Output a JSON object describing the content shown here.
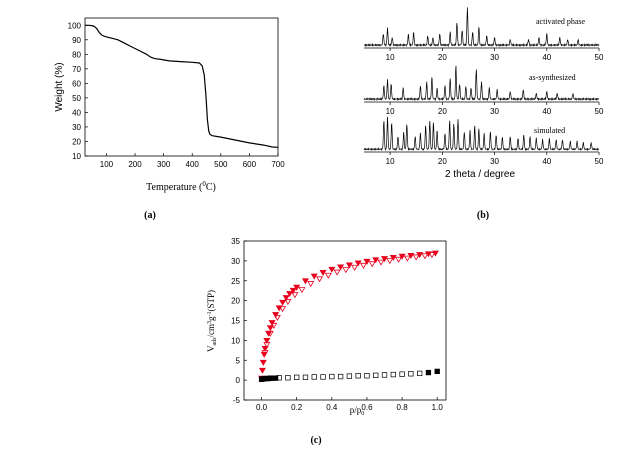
{
  "chart_data": [
    {
      "panel": "(a)",
      "type": "line",
      "xlabel_prefix": "Temperature (",
      "xlabel_sup": "0",
      "xlabel_suffix": "C)",
      "ylabel": "Weight  (%)",
      "xlim": [
        25,
        700
      ],
      "ylim": [
        10,
        105
      ],
      "xticks": [
        100,
        200,
        300,
        400,
        500,
        600,
        700
      ],
      "yticks": [
        10,
        20,
        30,
        40,
        50,
        60,
        70,
        80,
        90,
        100
      ],
      "grid": false,
      "series": [
        {
          "x": [
            25,
            40,
            55,
            65,
            75,
            85,
            100,
            120,
            140,
            160,
            180,
            200,
            220,
            240,
            255,
            270,
            290,
            320,
            360,
            400,
            425,
            435,
            442,
            448,
            453,
            458,
            462,
            470,
            500,
            550,
            600,
            650,
            680,
            700
          ],
          "y": [
            100,
            100,
            99.5,
            98,
            95,
            93,
            92,
            91,
            90,
            88,
            86,
            84,
            82,
            80,
            78,
            77,
            76.5,
            75.5,
            75,
            74.5,
            74,
            72,
            66,
            52,
            35,
            27,
            25,
            24,
            23,
            21,
            19,
            17.5,
            16.2,
            16
          ]
        }
      ]
    },
    {
      "panel": "(b)",
      "type": "line",
      "xlabel": "2 theta / degree",
      "xlim": [
        5,
        50
      ],
      "xticks": [
        10,
        20,
        30,
        40,
        50
      ],
      "grid": false,
      "patterns": [
        {
          "label": "activated phase",
          "peaks": [
            [
              8.7,
              0.3
            ],
            [
              9.5,
              0.45
            ],
            [
              10.4,
              0.2
            ],
            [
              13.5,
              0.3
            ],
            [
              14.5,
              0.35
            ],
            [
              17.2,
              0.25
            ],
            [
              18.2,
              0.2
            ],
            [
              19.5,
              0.3
            ],
            [
              21.5,
              0.35
            ],
            [
              22.8,
              0.6
            ],
            [
              23.8,
              0.4
            ],
            [
              24.8,
              1.0
            ],
            [
              25.8,
              0.35
            ],
            [
              27.0,
              0.5
            ],
            [
              28.5,
              0.25
            ],
            [
              30.0,
              0.2
            ],
            [
              33.0,
              0.15
            ],
            [
              36.5,
              0.15
            ],
            [
              38.5,
              0.2
            ],
            [
              40.0,
              0.3
            ],
            [
              42.5,
              0.2
            ],
            [
              44.0,
              0.15
            ],
            [
              46.0,
              0.15
            ]
          ]
        },
        {
          "label": "as-synthesized",
          "peaks": [
            [
              8.8,
              0.35
            ],
            [
              9.5,
              0.5
            ],
            [
              10.2,
              0.4
            ],
            [
              12.5,
              0.3
            ],
            [
              15.8,
              0.35
            ],
            [
              17.0,
              0.45
            ],
            [
              18.0,
              0.6
            ],
            [
              19.0,
              0.3
            ],
            [
              20.5,
              0.35
            ],
            [
              21.5,
              0.55
            ],
            [
              22.6,
              0.9
            ],
            [
              23.3,
              0.4
            ],
            [
              24.5,
              0.35
            ],
            [
              25.5,
              0.3
            ],
            [
              26.5,
              0.8
            ],
            [
              27.5,
              0.45
            ],
            [
              29.0,
              0.3
            ],
            [
              30.5,
              0.25
            ],
            [
              33.0,
              0.2
            ],
            [
              35.5,
              0.25
            ],
            [
              38.0,
              0.15
            ],
            [
              40.0,
              0.2
            ],
            [
              42.0,
              0.15
            ],
            [
              45.0,
              0.15
            ]
          ]
        },
        {
          "label": "simulated",
          "peaks": [
            [
              8.8,
              0.9
            ],
            [
              9.5,
              1.0
            ],
            [
              10.3,
              0.85
            ],
            [
              11.5,
              0.4
            ],
            [
              12.6,
              0.55
            ],
            [
              13.2,
              0.8
            ],
            [
              14.8,
              0.4
            ],
            [
              15.8,
              0.5
            ],
            [
              16.8,
              0.75
            ],
            [
              17.6,
              0.9
            ],
            [
              18.3,
              0.85
            ],
            [
              19.0,
              0.6
            ],
            [
              20.5,
              0.5
            ],
            [
              21.4,
              0.9
            ],
            [
              22.2,
              0.8
            ],
            [
              23.0,
              0.95
            ],
            [
              24.2,
              0.55
            ],
            [
              25.3,
              0.6
            ],
            [
              26.2,
              0.75
            ],
            [
              27.0,
              0.65
            ],
            [
              28.0,
              0.5
            ],
            [
              29.2,
              0.55
            ],
            [
              30.3,
              0.45
            ],
            [
              31.5,
              0.4
            ],
            [
              33.0,
              0.4
            ],
            [
              34.5,
              0.35
            ],
            [
              35.6,
              0.45
            ],
            [
              36.8,
              0.4
            ],
            [
              38.0,
              0.35
            ],
            [
              39.2,
              0.3
            ],
            [
              40.5,
              0.35
            ],
            [
              41.8,
              0.3
            ],
            [
              43.0,
              0.3
            ],
            [
              44.5,
              0.25
            ],
            [
              45.8,
              0.25
            ],
            [
              47.0,
              0.2
            ],
            [
              48.5,
              0.2
            ]
          ]
        }
      ]
    },
    {
      "panel": "(c)",
      "type": "scatter",
      "xlabel_main": "p/p",
      "xlabel_sub": "0",
      "ylabel_main": "V",
      "ylabel_sub": "ads",
      "ylabel_mid1": "/cm",
      "ylabel_sup1": "3",
      "ylabel_mid2": "g",
      "ylabel_sup2": "-1",
      "ylabel_end": "(STP)",
      "xlim": [
        -0.1,
        1.05
      ],
      "ylim": [
        -5,
        35
      ],
      "xticks": [
        "0.0",
        "0.2",
        "0.4",
        "0.6",
        "0.8",
        "1.0"
      ],
      "yticks": [
        "-5",
        "0",
        "5",
        "10",
        "15",
        "20",
        "25",
        "30",
        "35"
      ],
      "grid": false,
      "series": [
        {
          "marker": "triangle-down-filled",
          "color": "#e8001c",
          "x": [
            0.0,
            0.005,
            0.01,
            0.015,
            0.02,
            0.03,
            0.04,
            0.05,
            0.06,
            0.08,
            0.1,
            0.12,
            0.14,
            0.16,
            0.18,
            0.2,
            0.25,
            0.3,
            0.35,
            0.4,
            0.45,
            0.5,
            0.55,
            0.6,
            0.65,
            0.7,
            0.75,
            0.8,
            0.85,
            0.9,
            0.95,
            0.99
          ],
          "y": [
            0.5,
            2.5,
            4.5,
            6.5,
            8.0,
            10.0,
            11.8,
            13.2,
            14.5,
            16.5,
            18.2,
            19.6,
            20.8,
            21.8,
            22.6,
            23.4,
            25.0,
            26.2,
            27.1,
            27.9,
            28.5,
            29.0,
            29.5,
            29.9,
            30.3,
            30.6,
            30.9,
            31.2,
            31.4,
            31.6,
            31.8,
            32.0
          ]
        },
        {
          "marker": "triangle-down-open",
          "color": "#e8001c",
          "x": [
            0.97,
            0.93,
            0.88,
            0.83,
            0.78,
            0.73,
            0.68,
            0.63,
            0.58,
            0.53,
            0.48,
            0.43,
            0.38,
            0.33,
            0.28,
            0.23,
            0.19,
            0.15,
            0.12,
            0.09,
            0.07,
            0.05,
            0.03,
            0.02
          ],
          "y": [
            31.6,
            31.3,
            31.0,
            30.7,
            30.4,
            30.1,
            29.7,
            29.3,
            28.9,
            28.4,
            27.8,
            27.2,
            26.4,
            25.5,
            24.3,
            22.8,
            21.5,
            19.8,
            18.0,
            15.8,
            13.8,
            11.8,
            9.0,
            7.0
          ]
        },
        {
          "marker": "square-filled",
          "color": "#000000",
          "x": [
            0.0,
            0.005,
            0.01,
            0.02,
            0.03,
            0.04,
            0.05,
            0.06,
            0.08,
            0.95,
            1.0
          ],
          "y": [
            0.2,
            0.3,
            0.3,
            0.4,
            0.4,
            0.4,
            0.5,
            0.5,
            0.5,
            1.9,
            2.2
          ]
        },
        {
          "marker": "square-open",
          "color": "#000000",
          "x": [
            0.1,
            0.15,
            0.2,
            0.25,
            0.3,
            0.35,
            0.4,
            0.45,
            0.5,
            0.55,
            0.6,
            0.65,
            0.7,
            0.75,
            0.8,
            0.85,
            0.9
          ],
          "y": [
            0.6,
            0.6,
            0.7,
            0.7,
            0.8,
            0.8,
            0.9,
            0.9,
            1.0,
            1.1,
            1.1,
            1.2,
            1.3,
            1.4,
            1.5,
            1.6,
            1.7
          ]
        }
      ]
    }
  ]
}
